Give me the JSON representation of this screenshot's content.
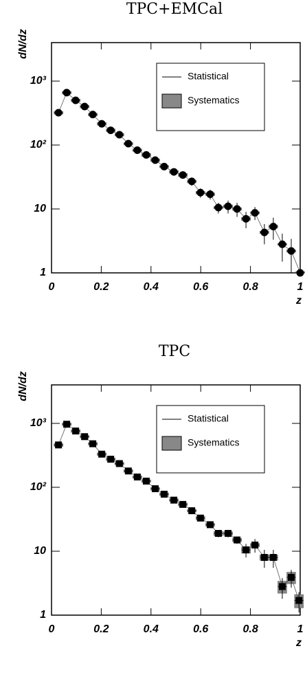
{
  "chart_data": [
    {
      "type": "scatter",
      "title": "TPC+EMCal",
      "x_label": "z",
      "y_label": "dN/dz",
      "marker": "circle",
      "legend": [
        "Statistical",
        "Systematics"
      ],
      "color": "#000000",
      "systematics_color": "#888888",
      "xlim": [
        0,
        1
      ],
      "xticks": [
        0,
        0.2,
        0.4,
        0.6,
        0.8,
        1
      ],
      "ylim": [
        1,
        4000
      ],
      "log_y": true,
      "yticks": [
        1,
        10,
        {
          "value": 100,
          "label": "10²"
        },
        {
          "value": 1000,
          "label": "10³"
        }
      ],
      "x": [
        0.028,
        0.061,
        0.097,
        0.133,
        0.166,
        0.202,
        0.238,
        0.273,
        0.309,
        0.345,
        0.381,
        0.417,
        0.453,
        0.492,
        0.528,
        0.564,
        0.599,
        0.638,
        0.671,
        0.71,
        0.746,
        0.782,
        0.818,
        0.856,
        0.892,
        0.928,
        0.964,
        1.0
      ],
      "values": [
        320,
        660,
        500,
        400,
        300,
        215,
        170,
        145,
        105,
        83,
        70,
        58,
        46,
        38,
        34,
        27,
        18,
        17,
        10.5,
        11,
        10,
        7,
        8.7,
        4.3,
        5.3,
        2.8,
        2.2,
        1.0
      ],
      "errors": [
        15,
        30,
        25,
        20,
        15,
        10,
        9,
        8,
        6,
        5,
        5,
        4,
        4,
        4,
        4,
        4,
        3,
        3,
        2,
        2.5,
        2.5,
        2,
        2,
        1.5,
        2,
        1.3,
        1.2,
        1
      ],
      "systematics": [
        16,
        33,
        25,
        20,
        15,
        11,
        9,
        7,
        5,
        4,
        4,
        3,
        2,
        2,
        2,
        1.4,
        0.9,
        0.9,
        0.5,
        0.6,
        0.5,
        0.4,
        0.4,
        0.2,
        0.3,
        0.1,
        0.1,
        0.05
      ]
    },
    {
      "type": "scatter",
      "title": "TPC",
      "x_label": "z",
      "y_label": "dN/dz",
      "marker": "square",
      "legend": [
        "Statistical",
        "Systematics"
      ],
      "color": "#000000",
      "systematics_color": "#888888",
      "xlim": [
        0,
        1
      ],
      "xticks": [
        0,
        0.2,
        0.4,
        0.6,
        0.8,
        1
      ],
      "ylim": [
        1,
        4000
      ],
      "log_y": true,
      "yticks": [
        1,
        10,
        {
          "value": 100,
          "label": "10²"
        },
        {
          "value": 1000,
          "label": "10³"
        }
      ],
      "x": [
        0.028,
        0.061,
        0.097,
        0.133,
        0.166,
        0.202,
        0.238,
        0.273,
        0.309,
        0.345,
        0.381,
        0.417,
        0.453,
        0.492,
        0.528,
        0.564,
        0.599,
        0.638,
        0.671,
        0.71,
        0.746,
        0.782,
        0.818,
        0.856,
        0.892,
        0.928,
        0.964,
        0.995
      ],
      "values": [
        460,
        970,
        760,
        620,
        480,
        330,
        275,
        235,
        180,
        145,
        125,
        95,
        78,
        63,
        54,
        43,
        33,
        26,
        19,
        19,
        15,
        10.5,
        12.5,
        8,
        8,
        2.8,
        3.9,
        1.7
      ],
      "errors": [
        20,
        40,
        30,
        25,
        20,
        15,
        12,
        10,
        8,
        7,
        6,
        5,
        4,
        4,
        3,
        3,
        3,
        3,
        2.5,
        2.5,
        2,
        2.5,
        3,
        2.5,
        2.5,
        1,
        1.2,
        0.6
      ],
      "systematics": [
        25,
        50,
        40,
        30,
        25,
        17,
        14,
        12,
        9,
        7,
        6,
        5,
        4,
        3,
        3,
        2,
        2,
        1.5,
        1.5,
        1.2,
        1,
        1.2,
        0.8,
        0.8,
        0.8,
        0.6,
        0.8,
        0.4
      ]
    }
  ]
}
